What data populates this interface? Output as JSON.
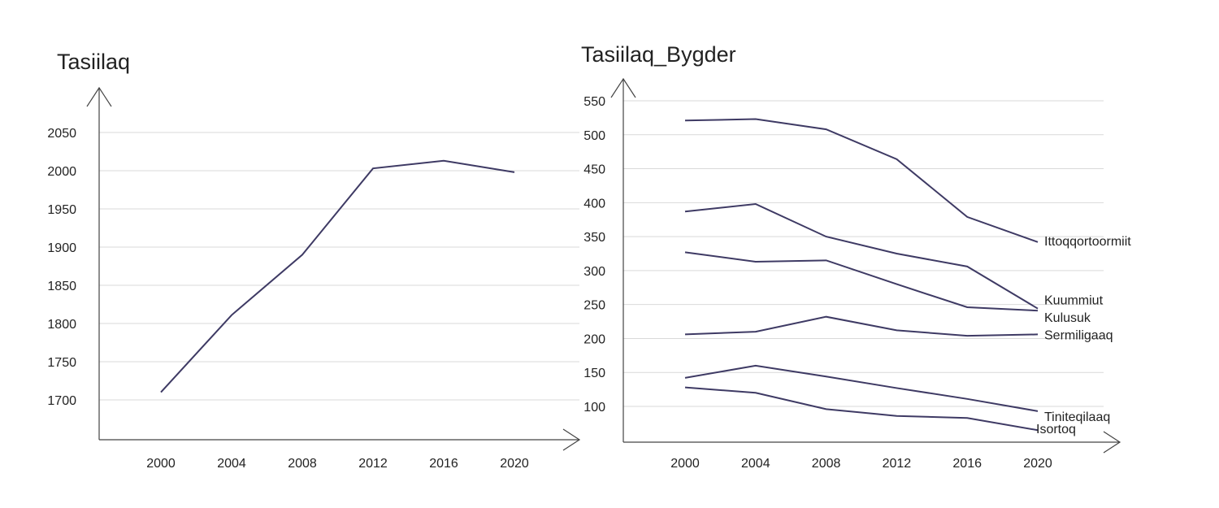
{
  "chart_data": [
    {
      "type": "line",
      "title": "Tasiilaq",
      "xlabel": "",
      "ylabel": "",
      "x": [
        2000,
        2004,
        2008,
        2012,
        2016,
        2020
      ],
      "ylim": [
        1655,
        2095
      ],
      "yticks": [
        1700,
        1750,
        1800,
        1850,
        1900,
        1950,
        2000,
        2050
      ],
      "grid": true,
      "series": [
        {
          "values": [
            1710,
            1811,
            1890,
            2003,
            2013,
            1998
          ]
        }
      ]
    },
    {
      "type": "line",
      "title": "Tasiilaq_Bygder",
      "xlabel": "",
      "ylabel": "",
      "x": [
        2000,
        2004,
        2008,
        2012,
        2016,
        2020
      ],
      "ylim": [
        50,
        575
      ],
      "yticks": [
        100,
        150,
        200,
        250,
        300,
        350,
        400,
        450,
        500,
        550
      ],
      "grid": true,
      "series": [
        {
          "name": "Ittoqqortoormiit",
          "values": [
            521,
            523,
            508,
            464,
            379,
            342
          ]
        },
        {
          "name": "Kuummiut",
          "values": [
            387,
            398,
            350,
            325,
            306,
            244
          ]
        },
        {
          "name": "Kulusuk",
          "values": [
            327,
            313,
            315,
            280,
            246,
            241
          ]
        },
        {
          "name": "Sermiligaaq",
          "values": [
            206,
            210,
            232,
            212,
            204,
            206
          ]
        },
        {
          "name": "Tiniteqilaaq",
          "values": [
            142,
            160,
            144,
            127,
            111,
            93
          ]
        },
        {
          "name": "Isortoq",
          "values": [
            128,
            120,
            96,
            86,
            83,
            65
          ]
        }
      ]
    }
  ]
}
